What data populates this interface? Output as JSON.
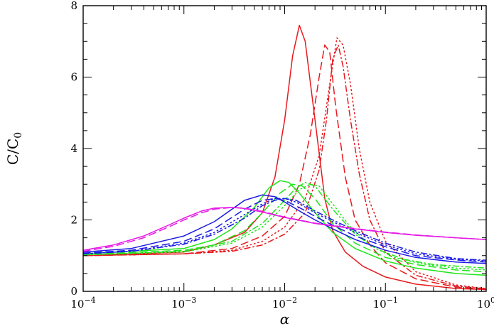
{
  "chart_data": {
    "type": "line",
    "title": "",
    "xlabel": "α",
    "ylabel": "C/C",
    "ylabel_sub": "0",
    "xscale": "log",
    "xlim": [
      0.0001,
      1
    ],
    "ylim": [
      0,
      8
    ],
    "legend": "none",
    "grid": false,
    "x_ticks": [
      {
        "base": "10",
        "exp": "−4"
      },
      {
        "base": "10",
        "exp": "−3"
      },
      {
        "base": "10",
        "exp": "−2"
      },
      {
        "base": "10",
        "exp": "−1"
      },
      {
        "base": "10",
        "exp": "0"
      }
    ],
    "y_ticks": [
      "0",
      "2",
      "4",
      "6",
      "8"
    ],
    "series": [
      {
        "color": "#e8191e",
        "dash": "solid",
        "points": [
          [
            0.0001,
            1.0
          ],
          [
            0.001,
            1.1
          ],
          [
            0.002,
            1.3
          ],
          [
            0.004,
            1.65
          ],
          [
            0.006,
            2.2
          ],
          [
            0.008,
            3.2
          ],
          [
            0.01,
            4.8
          ],
          [
            0.012,
            6.6
          ],
          [
            0.014,
            7.45
          ],
          [
            0.016,
            7.0
          ],
          [
            0.02,
            4.8
          ],
          [
            0.025,
            2.6
          ],
          [
            0.03,
            1.7
          ],
          [
            0.04,
            1.1
          ],
          [
            0.06,
            0.7
          ],
          [
            0.1,
            0.4
          ],
          [
            0.2,
            0.2
          ],
          [
            0.5,
            0.08
          ],
          [
            1.0,
            0.05
          ]
        ]
      },
      {
        "color": "#e8191e",
        "dash": "10,6",
        "points": [
          [
            0.0001,
            1.0
          ],
          [
            0.001,
            1.05
          ],
          [
            0.003,
            1.2
          ],
          [
            0.006,
            1.55
          ],
          [
            0.01,
            2.1
          ],
          [
            0.014,
            3.0
          ],
          [
            0.018,
            4.4
          ],
          [
            0.022,
            6.0
          ],
          [
            0.025,
            6.9
          ],
          [
            0.028,
            6.7
          ],
          [
            0.032,
            5.2
          ],
          [
            0.04,
            3.2
          ],
          [
            0.05,
            2.0
          ],
          [
            0.07,
            1.3
          ],
          [
            0.1,
            0.8
          ],
          [
            0.2,
            0.35
          ],
          [
            0.5,
            0.12
          ],
          [
            1.0,
            0.06
          ]
        ]
      },
      {
        "color": "#e8191e",
        "dash": "1.5,4",
        "points": [
          [
            0.0001,
            1.0
          ],
          [
            0.001,
            1.05
          ],
          [
            0.003,
            1.15
          ],
          [
            0.006,
            1.4
          ],
          [
            0.01,
            1.8
          ],
          [
            0.016,
            2.6
          ],
          [
            0.022,
            3.8
          ],
          [
            0.028,
            5.8
          ],
          [
            0.033,
            7.1
          ],
          [
            0.038,
            6.9
          ],
          [
            0.045,
            5.8
          ],
          [
            0.055,
            4.0
          ],
          [
            0.07,
            2.5
          ],
          [
            0.1,
            1.4
          ],
          [
            0.2,
            0.55
          ],
          [
            0.5,
            0.18
          ],
          [
            1.0,
            0.08
          ]
        ]
      },
      {
        "color": "#e8191e",
        "dash": "8,4,1.5,4",
        "points": [
          [
            0.0001,
            1.0
          ],
          [
            0.001,
            1.05
          ],
          [
            0.003,
            1.12
          ],
          [
            0.006,
            1.3
          ],
          [
            0.01,
            1.6
          ],
          [
            0.016,
            2.2
          ],
          [
            0.022,
            3.4
          ],
          [
            0.026,
            4.8
          ],
          [
            0.03,
            6.5
          ],
          [
            0.034,
            6.9
          ],
          [
            0.038,
            6.3
          ],
          [
            0.045,
            4.8
          ],
          [
            0.055,
            3.3
          ],
          [
            0.07,
            2.0
          ],
          [
            0.1,
            1.1
          ],
          [
            0.2,
            0.45
          ],
          [
            0.5,
            0.15
          ],
          [
            1.0,
            0.07
          ]
        ]
      },
      {
        "color": "#1ee619",
        "dash": "solid",
        "points": [
          [
            0.0001,
            1.05
          ],
          [
            0.001,
            1.2
          ],
          [
            0.002,
            1.45
          ],
          [
            0.003,
            1.75
          ],
          [
            0.005,
            2.35
          ],
          [
            0.007,
            2.9
          ],
          [
            0.009,
            3.1
          ],
          [
            0.011,
            3.05
          ],
          [
            0.014,
            2.75
          ],
          [
            0.02,
            2.2
          ],
          [
            0.03,
            1.65
          ],
          [
            0.05,
            1.2
          ],
          [
            0.1,
            0.85
          ],
          [
            0.2,
            0.65
          ],
          [
            0.5,
            0.5
          ],
          [
            1.0,
            0.45
          ]
        ]
      },
      {
        "color": "#1ee619",
        "dash": "10,6",
        "points": [
          [
            0.0001,
            1.03
          ],
          [
            0.001,
            1.15
          ],
          [
            0.002,
            1.3
          ],
          [
            0.004,
            1.7
          ],
          [
            0.006,
            2.2
          ],
          [
            0.009,
            2.75
          ],
          [
            0.012,
            3.0
          ],
          [
            0.015,
            2.95
          ],
          [
            0.02,
            2.6
          ],
          [
            0.03,
            1.9
          ],
          [
            0.05,
            1.35
          ],
          [
            0.1,
            0.95
          ],
          [
            0.2,
            0.75
          ],
          [
            0.5,
            0.6
          ],
          [
            1.0,
            0.55
          ]
        ]
      },
      {
        "color": "#1ee619",
        "dash": "1.5,4",
        "points": [
          [
            0.0001,
            1.02
          ],
          [
            0.001,
            1.1
          ],
          [
            0.003,
            1.35
          ],
          [
            0.006,
            1.8
          ],
          [
            0.01,
            2.4
          ],
          [
            0.014,
            2.85
          ],
          [
            0.018,
            3.0
          ],
          [
            0.022,
            2.95
          ],
          [
            0.03,
            2.45
          ],
          [
            0.045,
            1.8
          ],
          [
            0.07,
            1.3
          ],
          [
            0.12,
            0.95
          ],
          [
            0.25,
            0.75
          ],
          [
            0.5,
            0.65
          ],
          [
            1.0,
            0.6
          ]
        ]
      },
      {
        "color": "#1ee619",
        "dash": "8,4,1.5,4",
        "points": [
          [
            0.0001,
            1.02
          ],
          [
            0.001,
            1.12
          ],
          [
            0.003,
            1.4
          ],
          [
            0.006,
            1.9
          ],
          [
            0.01,
            2.55
          ],
          [
            0.013,
            2.9
          ],
          [
            0.016,
            3.05
          ],
          [
            0.02,
            2.95
          ],
          [
            0.03,
            2.3
          ],
          [
            0.05,
            1.6
          ],
          [
            0.08,
            1.2
          ],
          [
            0.15,
            0.9
          ],
          [
            0.3,
            0.75
          ],
          [
            1.0,
            0.65
          ]
        ]
      },
      {
        "color": "#1a1ae6",
        "dash": "solid",
        "points": [
          [
            0.0001,
            1.1
          ],
          [
            0.0003,
            1.2
          ],
          [
            0.001,
            1.55
          ],
          [
            0.002,
            1.95
          ],
          [
            0.003,
            2.3
          ],
          [
            0.004,
            2.55
          ],
          [
            0.006,
            2.7
          ],
          [
            0.008,
            2.65
          ],
          [
            0.01,
            2.5
          ],
          [
            0.015,
            2.2
          ],
          [
            0.02,
            2.0
          ],
          [
            0.03,
            1.75
          ],
          [
            0.05,
            1.45
          ],
          [
            0.1,
            1.15
          ],
          [
            0.2,
            0.95
          ],
          [
            0.5,
            0.82
          ],
          [
            1.0,
            0.78
          ]
        ]
      },
      {
        "color": "#1a1ae6",
        "dash": "10,6",
        "points": [
          [
            0.0001,
            1.07
          ],
          [
            0.0003,
            1.15
          ],
          [
            0.001,
            1.4
          ],
          [
            0.002,
            1.75
          ],
          [
            0.004,
            2.3
          ],
          [
            0.006,
            2.55
          ],
          [
            0.008,
            2.6
          ],
          [
            0.01,
            2.55
          ],
          [
            0.015,
            2.3
          ],
          [
            0.02,
            2.1
          ],
          [
            0.03,
            1.85
          ],
          [
            0.05,
            1.55
          ],
          [
            0.1,
            1.25
          ],
          [
            0.2,
            1.0
          ],
          [
            0.5,
            0.88
          ],
          [
            1.0,
            0.82
          ]
        ]
      },
      {
        "color": "#1a1ae6",
        "dash": "1.5,4",
        "points": [
          [
            0.0001,
            1.05
          ],
          [
            0.0003,
            1.12
          ],
          [
            0.001,
            1.35
          ],
          [
            0.002,
            1.65
          ],
          [
            0.004,
            2.15
          ],
          [
            0.006,
            2.45
          ],
          [
            0.008,
            2.6
          ],
          [
            0.01,
            2.6
          ],
          [
            0.013,
            2.5
          ],
          [
            0.02,
            2.2
          ],
          [
            0.03,
            1.95
          ],
          [
            0.05,
            1.65
          ],
          [
            0.1,
            1.3
          ],
          [
            0.2,
            1.05
          ],
          [
            0.5,
            0.9
          ],
          [
            1.0,
            0.85
          ]
        ]
      },
      {
        "color": "#1a1ae6",
        "dash": "8,4,1.5,4",
        "points": [
          [
            0.0001,
            1.05
          ],
          [
            0.0003,
            1.12
          ],
          [
            0.001,
            1.32
          ],
          [
            0.002,
            1.6
          ],
          [
            0.004,
            2.05
          ],
          [
            0.006,
            2.4
          ],
          [
            0.008,
            2.55
          ],
          [
            0.01,
            2.6
          ],
          [
            0.013,
            2.55
          ],
          [
            0.02,
            2.25
          ],
          [
            0.03,
            2.0
          ],
          [
            0.05,
            1.7
          ],
          [
            0.1,
            1.35
          ],
          [
            0.2,
            1.1
          ],
          [
            0.5,
            0.92
          ],
          [
            1.0,
            0.87
          ]
        ]
      },
      {
        "color": "#e619e6",
        "dash": "solid",
        "points": [
          [
            0.0001,
            1.15
          ],
          [
            0.0002,
            1.3
          ],
          [
            0.0004,
            1.55
          ],
          [
            0.0007,
            1.85
          ],
          [
            0.001,
            2.05
          ],
          [
            0.0015,
            2.25
          ],
          [
            0.002,
            2.33
          ],
          [
            0.003,
            2.35
          ],
          [
            0.004,
            2.32
          ],
          [
            0.006,
            2.22
          ],
          [
            0.01,
            2.07
          ],
          [
            0.02,
            1.9
          ],
          [
            0.05,
            1.75
          ],
          [
            0.1,
            1.65
          ],
          [
            0.2,
            1.57
          ],
          [
            0.5,
            1.5
          ],
          [
            1.0,
            1.45
          ]
        ]
      },
      {
        "color": "#e619e6",
        "dash": "10,6",
        "points": [
          [
            0.0001,
            1.12
          ],
          [
            0.0002,
            1.26
          ],
          [
            0.0004,
            1.5
          ],
          [
            0.0007,
            1.8
          ],
          [
            0.001,
            2.0
          ],
          [
            0.0015,
            2.2
          ],
          [
            0.002,
            2.3
          ],
          [
            0.003,
            2.35
          ],
          [
            0.004,
            2.33
          ],
          [
            0.006,
            2.24
          ],
          [
            0.01,
            2.08
          ],
          [
            0.02,
            1.91
          ],
          [
            0.05,
            1.76
          ],
          [
            0.1,
            1.66
          ],
          [
            0.2,
            1.58
          ],
          [
            0.5,
            1.5
          ],
          [
            1.0,
            1.45
          ]
        ]
      }
    ]
  }
}
